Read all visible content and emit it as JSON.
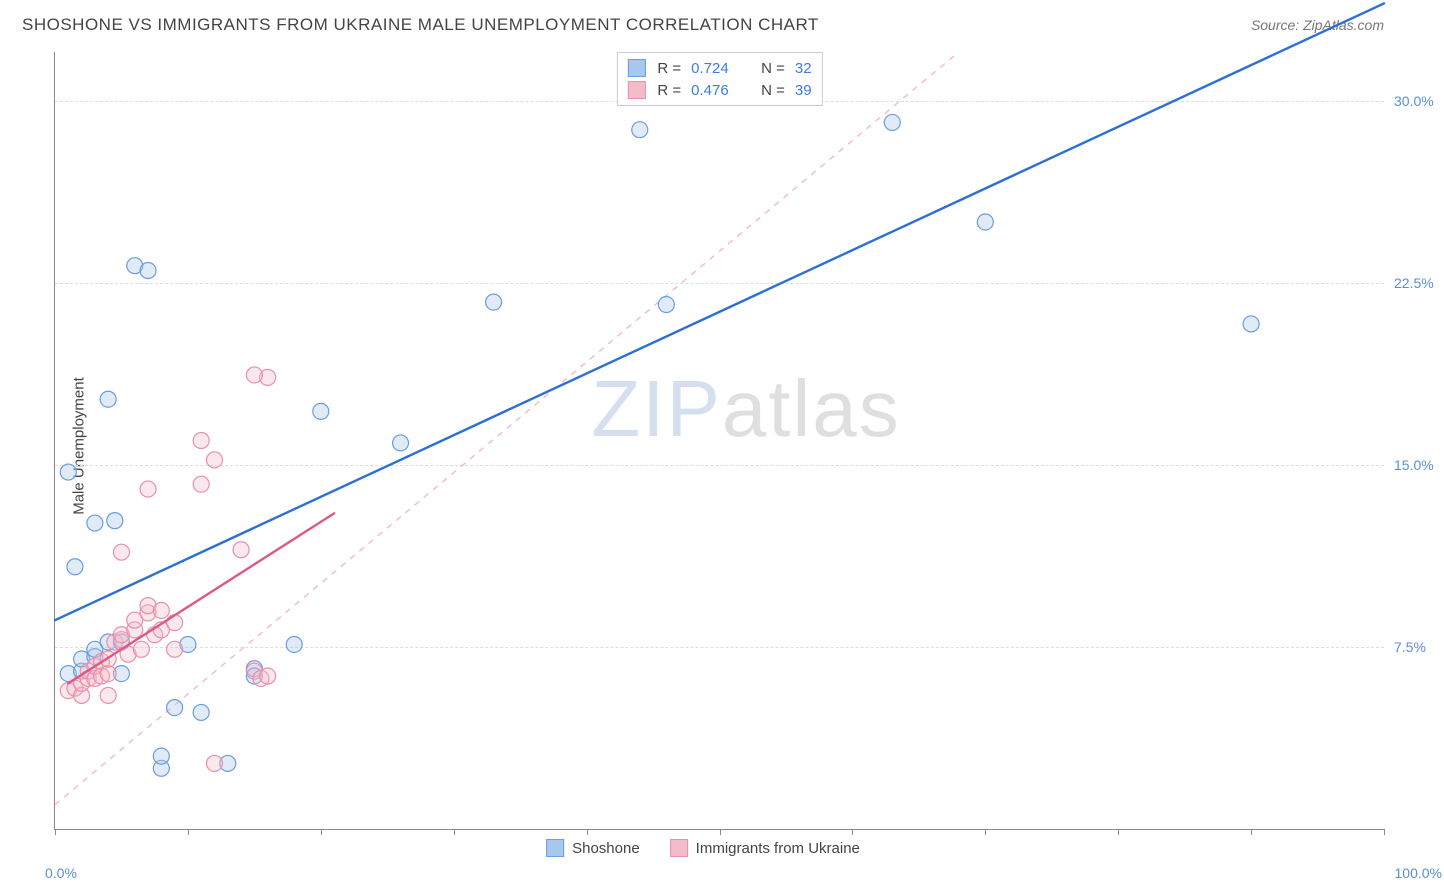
{
  "header": {
    "title": "SHOSHONE VS IMMIGRANTS FROM UKRAINE MALE UNEMPLOYMENT CORRELATION CHART",
    "source": "Source: ZipAtlas.com"
  },
  "y_axis": {
    "label": "Male Unemployment"
  },
  "watermark": {
    "z": "ZIP",
    "rest": "atlas"
  },
  "chart": {
    "type": "scatter",
    "background_color": "#ffffff",
    "grid_color": "#dddddd",
    "dash_ref_color": "#f4b9c7",
    "xlim": [
      0,
      100
    ],
    "ylim": [
      0,
      32
    ],
    "x_ticks": [
      0,
      10,
      20,
      30,
      40,
      50,
      60,
      70,
      80,
      90,
      100
    ],
    "x_tick_labels": {
      "0": "0.0%",
      "100": "100.0%"
    },
    "y_ticks": [
      {
        "v": 7.5,
        "label": "7.5%"
      },
      {
        "v": 15.0,
        "label": "15.0%"
      },
      {
        "v": 22.5,
        "label": "22.5%"
      },
      {
        "v": 30.0,
        "label": "30.0%"
      }
    ],
    "marker_radius": 8,
    "marker_stroke_width": 1.2,
    "marker_fill_opacity": 0.35,
    "line_width": 2.4,
    "series": [
      {
        "key": "shoshone",
        "name": "Shoshone",
        "color_stroke": "#6a9de0",
        "color_fill": "#a9c6ec",
        "line_color": "#2e6fd6",
        "r_value": "0.724",
        "n_value": "32",
        "trend": {
          "x1": 0,
          "y1": 8.6,
          "x2": 100,
          "y2": 34.0
        },
        "points": [
          [
            1,
            6.4
          ],
          [
            2,
            6.5
          ],
          [
            2,
            7.0
          ],
          [
            3,
            7.1
          ],
          [
            3,
            7.4
          ],
          [
            4,
            7.7
          ],
          [
            5,
            6.4
          ],
          [
            5,
            7.7
          ],
          [
            6,
            23.2
          ],
          [
            7,
            23.0
          ],
          [
            8,
            2.5
          ],
          [
            8,
            3.0
          ],
          [
            9,
            5.0
          ],
          [
            11,
            4.8
          ],
          [
            1.5,
            10.8
          ],
          [
            3,
            12.6
          ],
          [
            4.5,
            12.7
          ],
          [
            1,
            14.7
          ],
          [
            10,
            7.6
          ],
          [
            4,
            17.7
          ],
          [
            15,
            6.6
          ],
          [
            15,
            6.3
          ],
          [
            18,
            7.6
          ],
          [
            20,
            17.2
          ],
          [
            26,
            15.9
          ],
          [
            33,
            21.7
          ],
          [
            44,
            28.8
          ],
          [
            46,
            21.6
          ],
          [
            63,
            29.1
          ],
          [
            70,
            25.0
          ],
          [
            90,
            20.8
          ],
          [
            13,
            2.7
          ]
        ]
      },
      {
        "key": "ukraine",
        "name": "Immigrants from Ukraine",
        "color_stroke": "#e890a9",
        "color_fill": "#f3bccb",
        "line_color": "#de5a86",
        "r_value": "0.476",
        "n_value": "39",
        "trend": {
          "x1": 1,
          "y1": 6.0,
          "x2": 21,
          "y2": 13.0
        },
        "points": [
          [
            1,
            5.7
          ],
          [
            1.5,
            5.8
          ],
          [
            2,
            5.5
          ],
          [
            2,
            6.0
          ],
          [
            2.5,
            6.2
          ],
          [
            2.5,
            6.5
          ],
          [
            3,
            6.2
          ],
          [
            3,
            6.7
          ],
          [
            3.5,
            6.3
          ],
          [
            3.5,
            6.9
          ],
          [
            4,
            6.4
          ],
          [
            4,
            7.0
          ],
          [
            4,
            5.5
          ],
          [
            4.5,
            7.7
          ],
          [
            5,
            7.8
          ],
          [
            5,
            8.0
          ],
          [
            5.5,
            7.2
          ],
          [
            6,
            8.2
          ],
          [
            6,
            8.6
          ],
          [
            6.5,
            7.4
          ],
          [
            7,
            8.9
          ],
          [
            7,
            9.2
          ],
          [
            7.5,
            8.0
          ],
          [
            8,
            8.2
          ],
          [
            8,
            9.0
          ],
          [
            9,
            7.4
          ],
          [
            9,
            8.5
          ],
          [
            5,
            11.4
          ],
          [
            7,
            14.0
          ],
          [
            11,
            14.2
          ],
          [
            11,
            16.0
          ],
          [
            12,
            15.2
          ],
          [
            12,
            2.7
          ],
          [
            14,
            11.5
          ],
          [
            15,
            6.5
          ],
          [
            15.5,
            6.2
          ],
          [
            16,
            6.3
          ],
          [
            16,
            18.6
          ],
          [
            15,
            18.7
          ]
        ]
      }
    ],
    "dash_ref_line": {
      "x1": 0,
      "y1": 1,
      "x2": 68,
      "y2": 32
    }
  },
  "legend_top_strings": {
    "R": "R =",
    "N": "N ="
  }
}
